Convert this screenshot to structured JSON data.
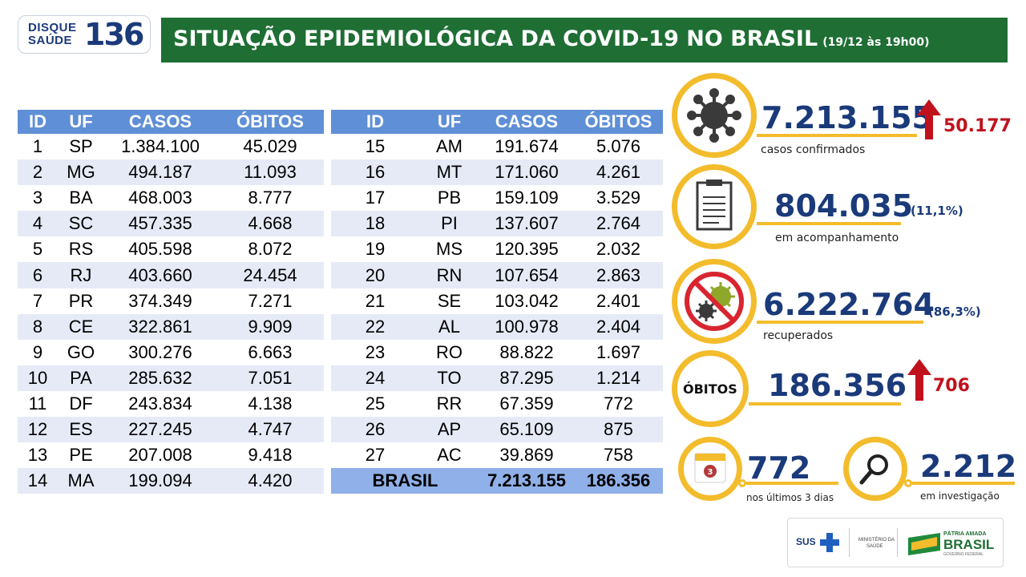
{
  "logo": {
    "line1": "DISQUE",
    "line2": "SAÚDE",
    "number": "136"
  },
  "header": {
    "title": "SITUAÇÃO EPIDEMIOLÓGICA DA COVID-19 NO BRASIL",
    "subtitle": "(19/12 às 19h00)"
  },
  "table_headers": [
    "ID",
    "UF",
    "CASOS",
    "ÓBITOS"
  ],
  "table_left": [
    [
      "1",
      "SP",
      "1.384.100",
      "45.029"
    ],
    [
      "2",
      "MG",
      "494.187",
      "11.093"
    ],
    [
      "3",
      "BA",
      "468.003",
      "8.777"
    ],
    [
      "4",
      "SC",
      "457.335",
      "4.668"
    ],
    [
      "5",
      "RS",
      "405.598",
      "8.072"
    ],
    [
      "6",
      "RJ",
      "403.660",
      "24.454"
    ],
    [
      "7",
      "PR",
      "374.349",
      "7.271"
    ],
    [
      "8",
      "CE",
      "322.861",
      "9.909"
    ],
    [
      "9",
      "GO",
      "300.276",
      "6.663"
    ],
    [
      "10",
      "PA",
      "285.632",
      "7.051"
    ],
    [
      "11",
      "DF",
      "243.834",
      "4.138"
    ],
    [
      "12",
      "ES",
      "227.245",
      "4.747"
    ],
    [
      "13",
      "PE",
      "207.008",
      "9.418"
    ],
    [
      "14",
      "MA",
      "199.094",
      "4.420"
    ]
  ],
  "table_right": [
    [
      "15",
      "AM",
      "191.674",
      "5.076"
    ],
    [
      "16",
      "MT",
      "171.060",
      "4.261"
    ],
    [
      "17",
      "PB",
      "159.109",
      "3.529"
    ],
    [
      "18",
      "PI",
      "137.607",
      "2.764"
    ],
    [
      "19",
      "MS",
      "120.395",
      "2.032"
    ],
    [
      "20",
      "RN",
      "107.654",
      "2.863"
    ],
    [
      "21",
      "SE",
      "103.042",
      "2.401"
    ],
    [
      "22",
      "AL",
      "100.978",
      "2.404"
    ],
    [
      "23",
      "RO",
      "88.822",
      "1.697"
    ],
    [
      "24",
      "TO",
      "87.295",
      "1.214"
    ],
    [
      "25",
      "RR",
      "67.359",
      "772"
    ],
    [
      "26",
      "AP",
      "65.109",
      "875"
    ],
    [
      "27",
      "AC",
      "39.869",
      "758"
    ]
  ],
  "total": {
    "label": "BRASIL",
    "casos": "7.213.155",
    "obitos": "186.356"
  },
  "stats": {
    "confirmados": {
      "value": "7.213.155",
      "increase": "50.177",
      "label": "casos confirmados"
    },
    "acompanhamento": {
      "value": "804.035",
      "pct": "(11,1%)",
      "label": "em acompanhamento"
    },
    "recuperados": {
      "value": "6.222.764",
      "pct": "(86,3%)",
      "label": "recuperados"
    },
    "obitos": {
      "badge": "ÓBITOS",
      "value": "186.356",
      "increase": "706"
    },
    "ultimos3dias": {
      "value": "772",
      "label": "nos últimos 3 dias",
      "calendar_day": "3"
    },
    "investigacao": {
      "value": "2.212",
      "label": "em investigação"
    }
  },
  "footer": {
    "sus": "SUS",
    "ministerio_line1": "MINISTÉRIO DA",
    "ministerio_line2": "SAÚDE",
    "patria": "PÁTRIA AMADA",
    "brasil": "BRASIL",
    "governo": "GOVERNO FEDERAL"
  },
  "colors": {
    "green": "#1f6e34",
    "navy": "#1a3a7a",
    "yellow": "#f3bc2c",
    "red": "#c0121c",
    "header_blue": "#5f8fd6"
  }
}
